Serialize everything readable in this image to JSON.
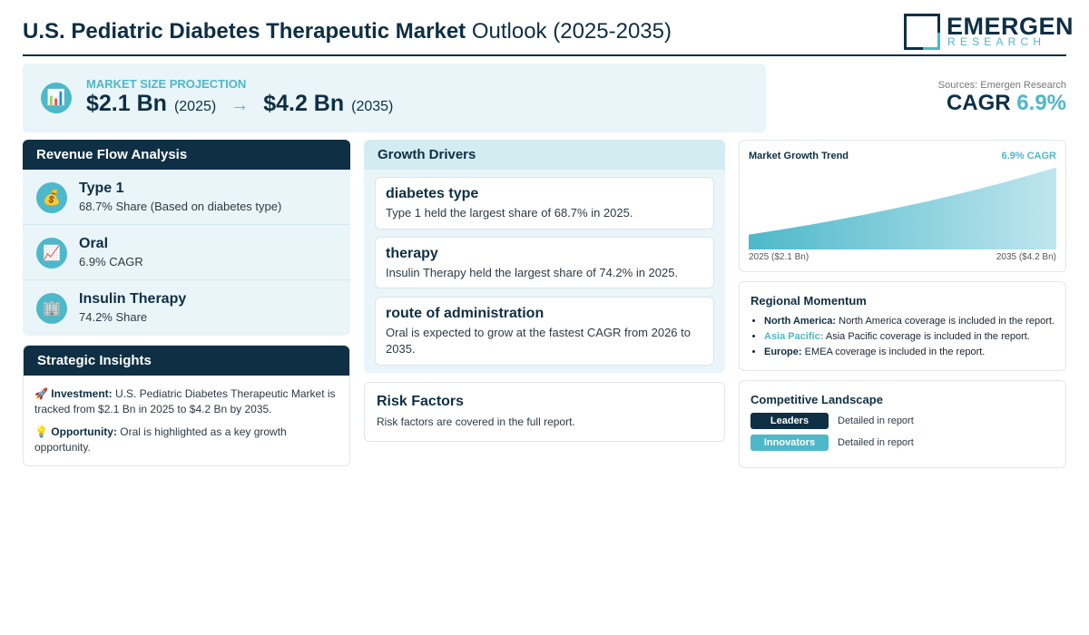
{
  "header": {
    "title_bold": "U.S. Pediatric Diabetes Therapeutic Market",
    "title_rest": "Outlook (2025-2035)",
    "logo_name": "EMERGEN",
    "logo_sub": "RESEARCH"
  },
  "projection": {
    "label": "MARKET SIZE PROJECTION",
    "start_value": "$2.1 Bn",
    "start_year": "(2025)",
    "arrow": "→",
    "end_value": "$4.2 Bn",
    "end_year": "(2035)",
    "icon": "bar-chart-icon"
  },
  "summary": {
    "sources": "Sources: Emergen Research",
    "cagr_label": "CAGR",
    "cagr_value": "6.9%"
  },
  "revenue_flow": {
    "title": "Revenue Flow Analysis",
    "items": [
      {
        "name": "Type 1",
        "desc": "68.7% Share (Based on diabetes type)",
        "icon": "money-bag-icon",
        "glyph": "💰"
      },
      {
        "name": "Oral",
        "desc": "6.9% CAGR",
        "icon": "trend-up-icon",
        "glyph": "📈"
      },
      {
        "name": "Insulin Therapy",
        "desc": "74.2% Share",
        "icon": "building-icon",
        "glyph": "🏢"
      }
    ]
  },
  "strategic": {
    "title": "Strategic Insights",
    "investment_label": "Investment:",
    "investment_text": "U.S. Pediatric Diabetes Therapeutic Market is tracked from $2.1 Bn in 2025 to $4.2 Bn by 2035.",
    "opportunity_label": "Opportunity:",
    "opportunity_text": "Oral is highlighted as a key growth opportunity."
  },
  "drivers": {
    "title": "Growth Drivers",
    "items": [
      {
        "title": "diabetes type",
        "text": "Type 1 held the largest share of 68.7% in 2025."
      },
      {
        "title": "therapy",
        "text": "Insulin Therapy held the largest share of 74.2% in 2025."
      },
      {
        "title": "route of administration",
        "text": "Oral is expected to grow at the fastest CAGR from 2026 to 2035."
      }
    ]
  },
  "risk": {
    "title": "Risk Factors",
    "text": "Risk factors are covered in the full report."
  },
  "trend": {
    "title": "Market Growth Trend",
    "cagr": "6.9% CAGR",
    "start_label": "2025 ($2.1 Bn)",
    "end_label": "2035 ($4.2 Bn)"
  },
  "chart_data": {
    "type": "area",
    "x": [
      2025,
      2035
    ],
    "values": [
      2.1,
      4.2
    ],
    "title": "Market Growth Trend",
    "xlabel": "",
    "ylabel": ""
  },
  "regional": {
    "title": "Regional Momentum",
    "items": [
      {
        "label": "North America:",
        "text": "North America coverage is included in the report."
      },
      {
        "label": "Asia Pacific:",
        "text": "Asia Pacific coverage is included in the report."
      },
      {
        "label": "Europe:",
        "text": "EMEA coverage is included in the report."
      }
    ]
  },
  "competitive": {
    "title": "Competitive Landscape",
    "rows": [
      {
        "badge": "Leaders",
        "desc": "Detailed in report"
      },
      {
        "badge": "Innovators",
        "desc": "Detailed in report"
      }
    ]
  },
  "colors": {
    "navy": "#0e2f44",
    "teal": "#4db8c9",
    "light_bg": "#e9f5f8"
  }
}
